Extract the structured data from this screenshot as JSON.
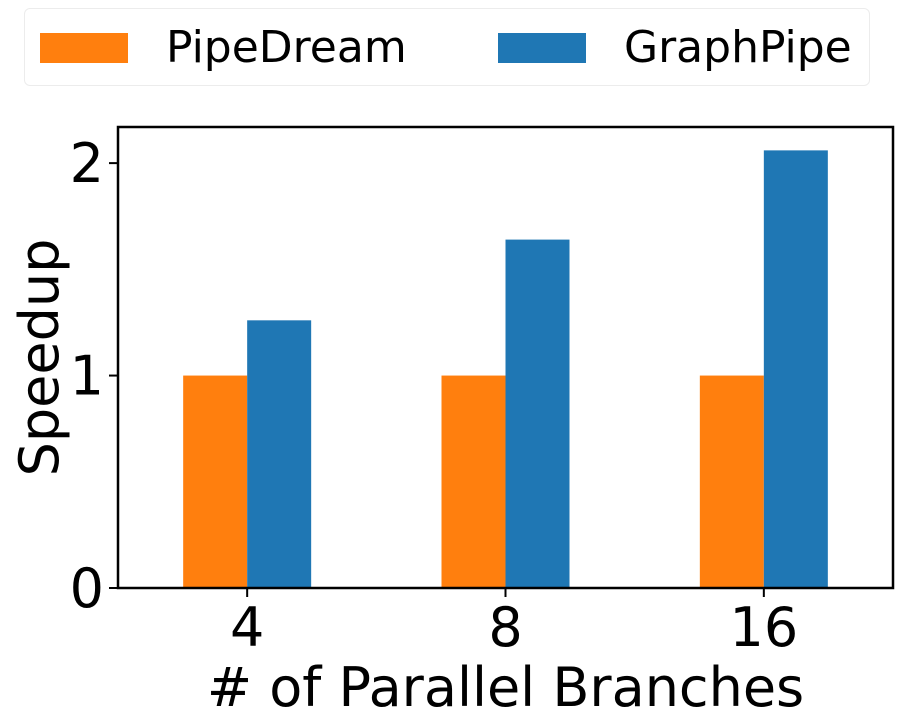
{
  "chart_data": {
    "type": "bar",
    "categories": [
      "4",
      "8",
      "16"
    ],
    "series": [
      {
        "name": "PipeDream",
        "color": "#ff7f0e",
        "values": [
          1.0,
          1.0,
          1.0
        ]
      },
      {
        "name": "GraphPipe",
        "color": "#1f77b4",
        "values": [
          1.26,
          1.64,
          2.06
        ]
      }
    ],
    "xlabel": "# of Parallel Branches",
    "ylabel": "Speedup",
    "ylim": [
      0,
      2.17
    ],
    "yticks": [
      0,
      1,
      2
    ],
    "ytick_labels": [
      "0",
      "1",
      "2"
    ],
    "grid": false,
    "legend_position": "top-center"
  }
}
